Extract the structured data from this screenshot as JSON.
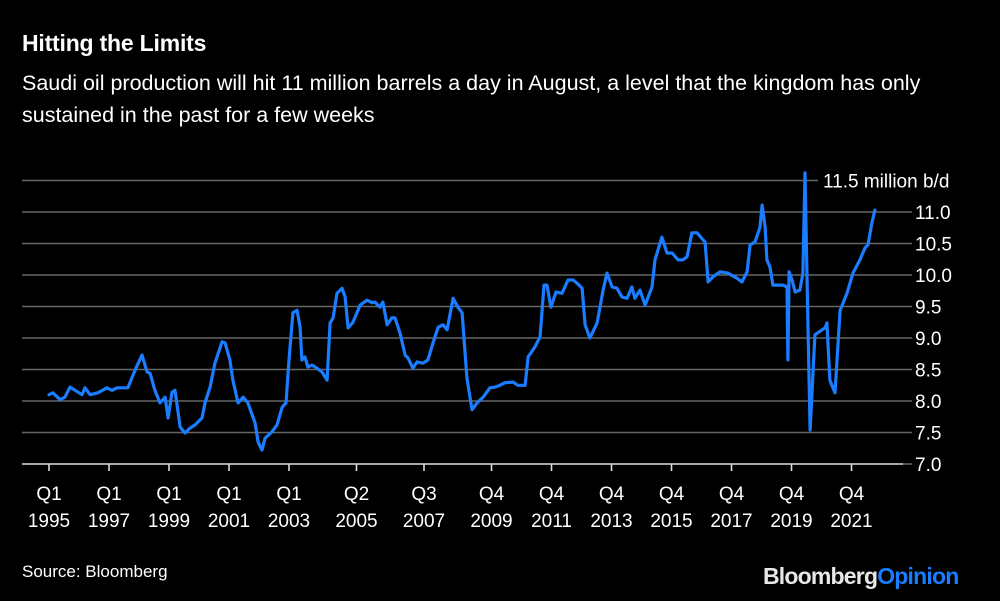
{
  "header": {
    "title": "Hitting the Limits",
    "subtitle": "Saudi oil production will hit 11 million barrels a day in August, a level that the kingdom has only sustained in the past for a few weeks"
  },
  "footer": {
    "source": "Source: Bloomberg",
    "logo_part1": "Bloomberg",
    "logo_part2": "Opinion"
  },
  "colors": {
    "background": "#000000",
    "line": "#1a7cff",
    "grid": "#666666",
    "logo_accent": "#1a7cff"
  },
  "chart_data": {
    "type": "line",
    "title": "Hitting the Limits",
    "ylabel": "",
    "unit_label": "11.5 million b/d",
    "ylim": [
      7.0,
      11.5
    ],
    "yticks": [
      "7.0",
      "7.5",
      "8.0",
      "8.5",
      "9.0",
      "9.5",
      "10.0",
      "10.5",
      "11.0"
    ],
    "grid": true,
    "xticks": [
      {
        "q": "Q1",
        "y": "1995",
        "t": 1995.0
      },
      {
        "q": "Q1",
        "y": "1997",
        "t": 1997.0
      },
      {
        "q": "Q1",
        "y": "1999",
        "t": 1999.0
      },
      {
        "q": "Q1",
        "y": "2001",
        "t": 2001.0
      },
      {
        "q": "Q1",
        "y": "2003",
        "t": 2003.0
      },
      {
        "q": "Q2",
        "y": "2005",
        "t": 2005.25
      },
      {
        "q": "Q3",
        "y": "2007",
        "t": 2007.5
      },
      {
        "q": "Q4",
        "y": "2009",
        "t": 2009.75
      },
      {
        "q": "Q4",
        "y": "2011",
        "t": 2011.75
      },
      {
        "q": "Q4",
        "y": "2013",
        "t": 2013.75
      },
      {
        "q": "Q4",
        "y": "2015",
        "t": 2015.75
      },
      {
        "q": "Q4",
        "y": "2017",
        "t": 2017.75
      },
      {
        "q": "Q4",
        "y": "2019",
        "t": 2019.75
      },
      {
        "q": "Q4",
        "y": "2021",
        "t": 2021.75
      }
    ],
    "series": [
      {
        "points": [
          [
            1995.0,
            8.1
          ],
          [
            1995.13,
            8.13
          ],
          [
            1995.37,
            8.02
          ],
          [
            1995.53,
            8.06
          ],
          [
            1995.7,
            8.22
          ],
          [
            1995.87,
            8.17
          ],
          [
            1996.1,
            8.1
          ],
          [
            1996.2,
            8.21
          ],
          [
            1996.37,
            8.1
          ],
          [
            1996.63,
            8.13
          ],
          [
            1996.93,
            8.21
          ],
          [
            1997.1,
            8.17
          ],
          [
            1997.27,
            8.21
          ],
          [
            1997.63,
            8.21
          ],
          [
            1997.87,
            8.49
          ],
          [
            1998.1,
            8.73
          ],
          [
            1998.27,
            8.46
          ],
          [
            1998.37,
            8.44
          ],
          [
            1998.53,
            8.17
          ],
          [
            1998.7,
            7.97
          ],
          [
            1998.87,
            8.06
          ],
          [
            1998.97,
            7.73
          ],
          [
            1999.1,
            8.14
          ],
          [
            1999.2,
            8.17
          ],
          [
            1999.37,
            7.59
          ],
          [
            1999.53,
            7.49
          ],
          [
            1999.7,
            7.57
          ],
          [
            1999.87,
            7.62
          ],
          [
            2000.1,
            7.73
          ],
          [
            2000.2,
            7.97
          ],
          [
            2000.37,
            8.22
          ],
          [
            2000.53,
            8.6
          ],
          [
            2000.77,
            8.94
          ],
          [
            2000.87,
            8.92
          ],
          [
            2001.03,
            8.65
          ],
          [
            2001.13,
            8.33
          ],
          [
            2001.3,
            7.97
          ],
          [
            2001.47,
            8.06
          ],
          [
            2001.63,
            7.97
          ],
          [
            2001.87,
            7.65
          ],
          [
            2001.97,
            7.35
          ],
          [
            2002.1,
            7.22
          ],
          [
            2002.2,
            7.41
          ],
          [
            2002.43,
            7.51
          ],
          [
            2002.6,
            7.62
          ],
          [
            2002.77,
            7.9
          ],
          [
            2002.9,
            7.97
          ],
          [
            2003.0,
            8.65
          ],
          [
            2003.13,
            9.4
          ],
          [
            2003.27,
            9.44
          ],
          [
            2003.37,
            9.17
          ],
          [
            2003.43,
            8.65
          ],
          [
            2003.53,
            8.7
          ],
          [
            2003.63,
            8.54
          ],
          [
            2003.77,
            8.57
          ],
          [
            2003.93,
            8.52
          ],
          [
            2004.1,
            8.46
          ],
          [
            2004.27,
            8.33
          ],
          [
            2004.37,
            9.24
          ],
          [
            2004.47,
            9.32
          ],
          [
            2004.6,
            9.71
          ],
          [
            2004.77,
            9.79
          ],
          [
            2004.87,
            9.65
          ],
          [
            2004.97,
            9.16
          ],
          [
            2005.13,
            9.25
          ],
          [
            2005.37,
            9.52
          ],
          [
            2005.6,
            9.6
          ],
          [
            2005.77,
            9.56
          ],
          [
            2005.87,
            9.57
          ],
          [
            2006.03,
            9.49
          ],
          [
            2006.13,
            9.57
          ],
          [
            2006.27,
            9.21
          ],
          [
            2006.43,
            9.32
          ],
          [
            2006.53,
            9.32
          ],
          [
            2006.7,
            9.08
          ],
          [
            2006.87,
            8.73
          ],
          [
            2006.97,
            8.68
          ],
          [
            2007.13,
            8.52
          ],
          [
            2007.27,
            8.62
          ],
          [
            2007.47,
            8.6
          ],
          [
            2007.63,
            8.65
          ],
          [
            2007.8,
            8.92
          ],
          [
            2007.97,
            9.17
          ],
          [
            2008.13,
            9.21
          ],
          [
            2008.27,
            9.13
          ],
          [
            2008.47,
            9.63
          ],
          [
            2008.63,
            9.49
          ],
          [
            2008.77,
            9.4
          ],
          [
            2008.93,
            8.37
          ],
          [
            2009.1,
            7.86
          ],
          [
            2009.27,
            7.97
          ],
          [
            2009.47,
            8.06
          ],
          [
            2009.7,
            8.21
          ],
          [
            2009.87,
            8.22
          ],
          [
            2010.03,
            8.25
          ],
          [
            2010.2,
            8.29
          ],
          [
            2010.47,
            8.3
          ],
          [
            2010.63,
            8.25
          ],
          [
            2010.87,
            8.25
          ],
          [
            2010.97,
            8.7
          ],
          [
            2011.2,
            8.86
          ],
          [
            2011.37,
            9.02
          ],
          [
            2011.5,
            9.84
          ],
          [
            2011.6,
            9.84
          ],
          [
            2011.73,
            9.49
          ],
          [
            2011.9,
            9.73
          ],
          [
            2012.1,
            9.71
          ],
          [
            2012.3,
            9.92
          ],
          [
            2012.47,
            9.92
          ],
          [
            2012.6,
            9.87
          ],
          [
            2012.77,
            9.79
          ],
          [
            2012.87,
            9.21
          ],
          [
            2013.03,
            9.0
          ],
          [
            2013.27,
            9.24
          ],
          [
            2013.47,
            9.76
          ],
          [
            2013.6,
            10.03
          ],
          [
            2013.77,
            9.81
          ],
          [
            2013.93,
            9.79
          ],
          [
            2014.1,
            9.65
          ],
          [
            2014.27,
            9.63
          ],
          [
            2014.43,
            9.81
          ],
          [
            2014.53,
            9.63
          ],
          [
            2014.7,
            9.76
          ],
          [
            2014.87,
            9.52
          ],
          [
            2015.1,
            9.81
          ],
          [
            2015.2,
            10.24
          ],
          [
            2015.43,
            10.6
          ],
          [
            2015.6,
            10.35
          ],
          [
            2015.77,
            10.35
          ],
          [
            2015.97,
            10.24
          ],
          [
            2016.13,
            10.24
          ],
          [
            2016.27,
            10.29
          ],
          [
            2016.43,
            10.67
          ],
          [
            2016.6,
            10.67
          ],
          [
            2016.87,
            10.52
          ],
          [
            2016.97,
            9.89
          ],
          [
            2017.13,
            9.97
          ],
          [
            2017.37,
            10.05
          ],
          [
            2017.63,
            10.03
          ],
          [
            2017.93,
            9.95
          ],
          [
            2018.1,
            9.89
          ],
          [
            2018.27,
            10.05
          ],
          [
            2018.37,
            10.48
          ],
          [
            2018.53,
            10.52
          ],
          [
            2018.7,
            10.76
          ],
          [
            2018.77,
            11.11
          ],
          [
            2018.87,
            10.76
          ],
          [
            2018.93,
            10.24
          ],
          [
            2019.03,
            10.13
          ],
          [
            2019.13,
            9.84
          ],
          [
            2019.3,
            9.84
          ],
          [
            2019.47,
            9.84
          ],
          [
            2019.6,
            9.81
          ],
          [
            2019.63,
            8.65
          ],
          [
            2019.67,
            10.05
          ],
          [
            2019.77,
            9.92
          ],
          [
            2019.87,
            9.73
          ],
          [
            2020.03,
            9.76
          ],
          [
            2020.13,
            10.03
          ],
          [
            2020.2,
            11.62
          ],
          [
            2020.3,
            9.17
          ],
          [
            2020.37,
            7.54
          ],
          [
            2020.53,
            9.05
          ],
          [
            2020.77,
            9.13
          ],
          [
            2020.87,
            9.16
          ],
          [
            2020.93,
            9.24
          ],
          [
            2021.03,
            8.33
          ],
          [
            2021.2,
            8.13
          ],
          [
            2021.37,
            9.44
          ],
          [
            2021.6,
            9.71
          ],
          [
            2021.8,
            10.03
          ],
          [
            2022.03,
            10.24
          ],
          [
            2022.2,
            10.43
          ],
          [
            2022.3,
            10.48
          ],
          [
            2022.43,
            10.83
          ],
          [
            2022.53,
            11.03
          ]
        ]
      }
    ]
  }
}
